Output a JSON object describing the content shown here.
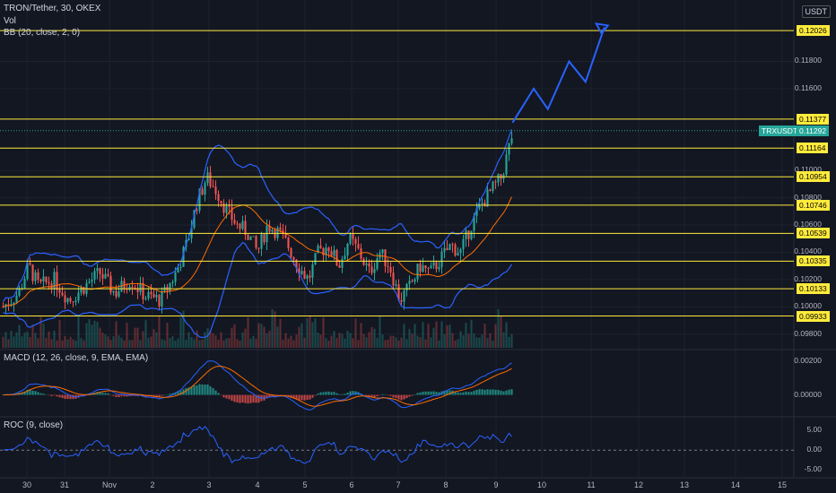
{
  "header": {
    "title": "TRON/Tether, 30, OKEX",
    "vol_label": "Vol",
    "bb_label": "BB (20, close, 2, 0)",
    "currency": "USDT"
  },
  "macd": {
    "label": "MACD (12, 26, close, 9, EMA, EMA)",
    "ticks": [
      "0.00200",
      "0.00000"
    ]
  },
  "roc": {
    "label": "ROC (9, close)",
    "ticks": [
      "5.00",
      "0.00",
      "-5.00"
    ]
  },
  "price_axis": {
    "ticks": [
      "0.11800",
      "0.11600",
      "0.11000",
      "0.10800",
      "0.10600",
      "0.10400",
      "0.10200",
      "0.10000",
      "0.09800"
    ]
  },
  "horizontal_levels": [
    "0.12026",
    "0.11377",
    "0.11164",
    "0.10954",
    "0.10746",
    "0.10539",
    "0.10335",
    "0.10133",
    "0.09933"
  ],
  "symbol_badge": {
    "symbol": "TRXUSDT",
    "price": "0.11292"
  },
  "time_axis": {
    "labels": [
      "30",
      "31",
      "Nov",
      "2",
      "3",
      "4",
      "5",
      "6",
      "7",
      "8",
      "9",
      "10",
      "11",
      "12",
      "13",
      "14",
      "15"
    ]
  },
  "colors": {
    "background": "#131722",
    "level_line": "#ffeb3b",
    "up": "#26a69a",
    "down": "#ef5350",
    "bands": "#2962ff",
    "projection": "#2962ff",
    "basis": "#ff6d00"
  },
  "chart_data": {
    "type": "candlestick",
    "symbol": "TRXUSDT",
    "exchange": "OKEX",
    "interval": "30",
    "last_price": 0.11292,
    "ylim": [
      0.097,
      0.1225
    ],
    "horizontal_levels": [
      0.12026,
      0.11377,
      0.11164,
      0.10954,
      0.10746,
      0.10539,
      0.10335,
      0.10133,
      0.09933
    ],
    "close_path": [
      [
        0.0,
        0.1
      ],
      [
        0.03,
        0.101
      ],
      [
        0.05,
        0.103
      ],
      [
        0.07,
        0.1015
      ],
      [
        0.1,
        0.102
      ],
      [
        0.13,
        0.1005
      ],
      [
        0.16,
        0.1015
      ],
      [
        0.19,
        0.1025
      ],
      [
        0.22,
        0.101
      ],
      [
        0.25,
        0.102
      ],
      [
        0.28,
        0.1008
      ],
      [
        0.31,
        0.1005
      ],
      [
        0.34,
        0.1025
      ],
      [
        0.36,
        0.1045
      ],
      [
        0.38,
        0.1075
      ],
      [
        0.4,
        0.1095
      ],
      [
        0.42,
        0.1085
      ],
      [
        0.44,
        0.107
      ],
      [
        0.46,
        0.106
      ],
      [
        0.48,
        0.1055
      ],
      [
        0.5,
        0.104
      ],
      [
        0.52,
        0.106
      ],
      [
        0.54,
        0.1055
      ],
      [
        0.56,
        0.1045
      ],
      [
        0.58,
        0.103
      ],
      [
        0.6,
        0.102
      ],
      [
        0.62,
        0.104
      ],
      [
        0.64,
        0.1045
      ],
      [
        0.66,
        0.103
      ],
      [
        0.68,
        0.105
      ],
      [
        0.7,
        0.104
      ],
      [
        0.72,
        0.1025
      ],
      [
        0.74,
        0.104
      ],
      [
        0.76,
        0.103
      ],
      [
        0.78,
        0.1005
      ],
      [
        0.8,
        0.1015
      ],
      [
        0.82,
        0.103
      ],
      [
        0.84,
        0.1025
      ],
      [
        0.86,
        0.1035
      ],
      [
        0.88,
        0.1045
      ],
      [
        0.9,
        0.104
      ],
      [
        0.92,
        0.106
      ],
      [
        0.94,
        0.1075
      ],
      [
        0.96,
        0.1085
      ],
      [
        0.98,
        0.1095
      ],
      [
        1.0,
        0.1125
      ]
    ],
    "projection_path": [
      [
        9.35,
        0.1135
      ],
      [
        9.8,
        0.116
      ],
      [
        10.1,
        0.1145
      ],
      [
        10.55,
        0.118
      ],
      [
        10.9,
        0.1165
      ],
      [
        11.3,
        0.1205
      ]
    ],
    "macd_range": [
      -0.0012,
      0.0026
    ],
    "roc_range": [
      -6.5,
      8.0
    ]
  }
}
